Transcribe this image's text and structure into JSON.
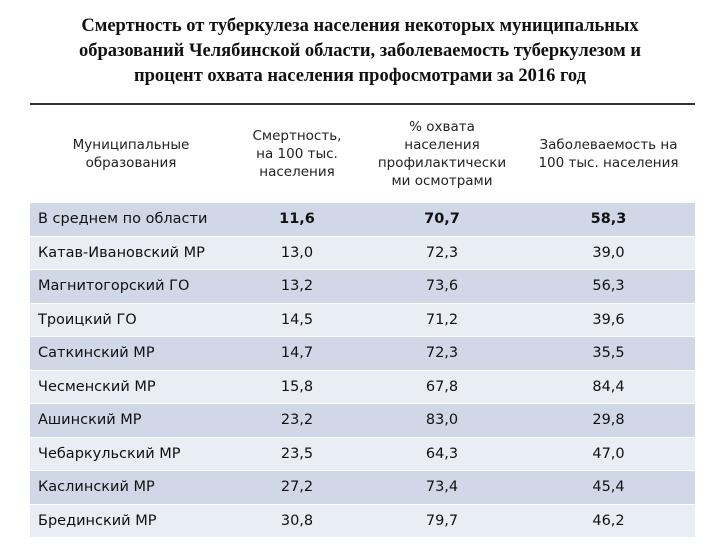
{
  "header": {
    "title": [
      "Смертность от туберкулеза населения некоторых муниципальных",
      "образований Челябинской области, заболеваемость туберкулезом и",
      "процент охвата населения профосмотрами за 2016 год"
    ]
  },
  "table": {
    "columns": [
      [
        "Муниципальные",
        "образования"
      ],
      [
        "Смертность,",
        "на 100 тыс.",
        "населения"
      ],
      [
        "% охвата",
        "населения",
        "профилактически",
        "ми осмотрами"
      ],
      [
        "Заболеваемость на",
        "100 тыс. населения"
      ]
    ],
    "rows": [
      [
        "В среднем по области",
        "11,6",
        "70,7",
        "58,3"
      ],
      [
        "Катав-Ивановский МР",
        "13,0",
        "72,3",
        "39,0"
      ],
      [
        "Магнитогорский ГО",
        "13,2",
        "73,6",
        "56,3"
      ],
      [
        "Троицкий ГО",
        "14,5",
        "71,2",
        "39,6"
      ],
      [
        "Саткинский МР",
        "14,7",
        "72,3",
        "35,5"
      ],
      [
        "Чесменский МР",
        "15,8",
        "67,8",
        "84,4"
      ],
      [
        "Ашинский МР",
        "23,2",
        "83,0",
        "29,8"
      ],
      [
        "Чебаркульский МР",
        "23,5",
        "64,3",
        "47,0"
      ],
      [
        "Каслинский МР",
        "27,2",
        "73,4",
        "45,4"
      ],
      [
        "Брединский МР",
        "30,8",
        "79,7",
        "46,2"
      ]
    ]
  }
}
